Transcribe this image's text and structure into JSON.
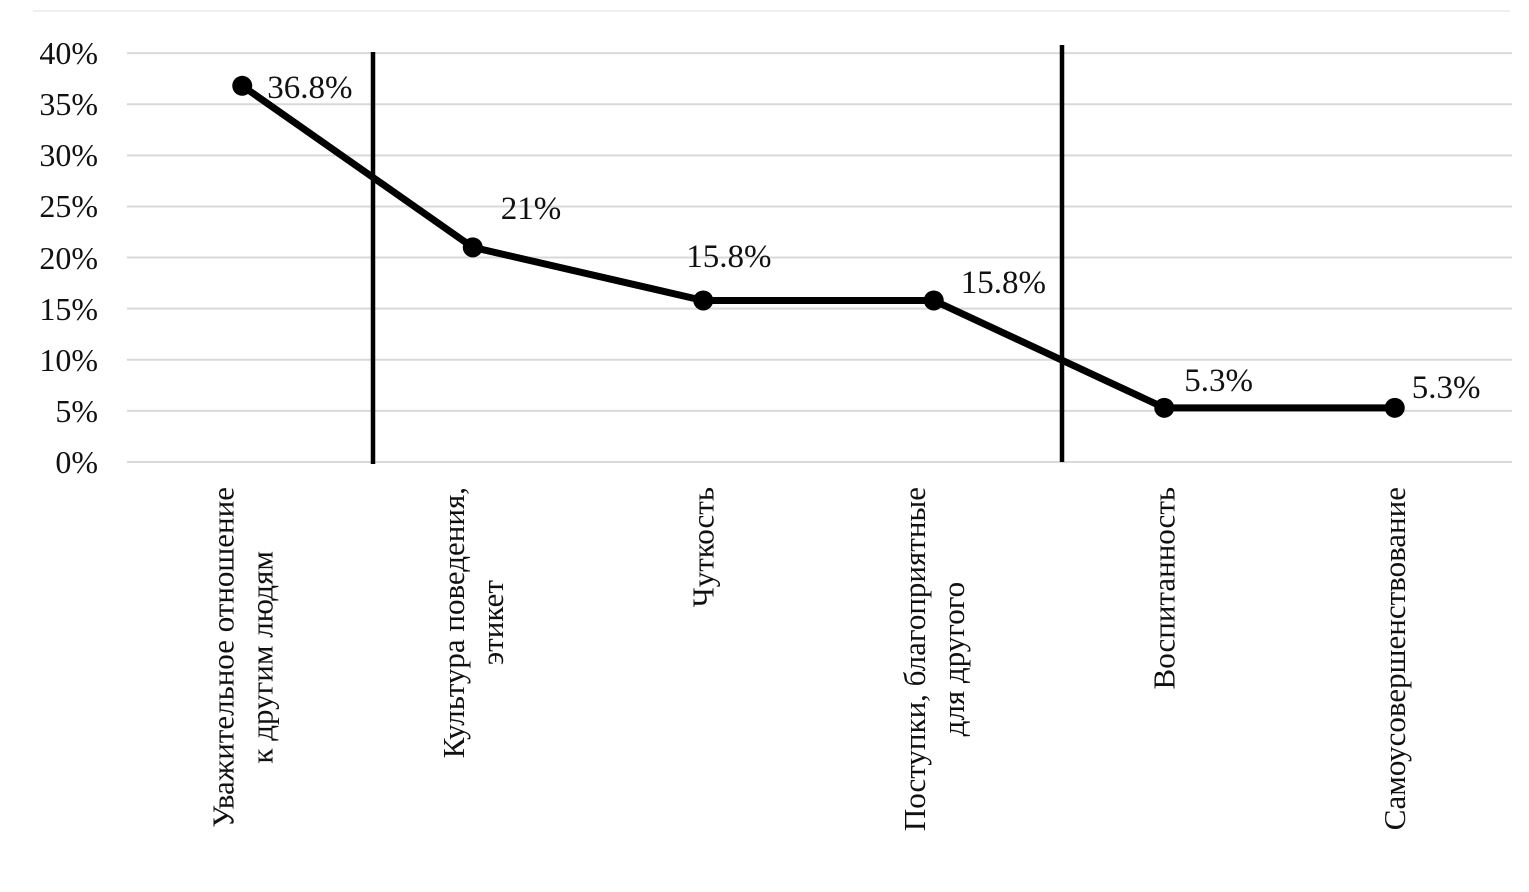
{
  "chart_data": {
    "type": "line",
    "title": "",
    "xlabel": "",
    "ylabel": "",
    "categories": [
      [
        "Уважительное отношение",
        "к другим людям"
      ],
      [
        "Культура поведения,",
        "этикет"
      ],
      [
        "Чуткость"
      ],
      [
        "Поступки, благоприятные",
        "для другого"
      ],
      [
        "Воспитанность"
      ],
      [
        "Самоусовершенствование"
      ]
    ],
    "values": [
      36.8,
      21,
      15.8,
      15.8,
      5.3,
      5.3
    ],
    "point_labels": [
      "36.8%",
      "21%",
      "15.8%",
      "15.8%",
      "5.3%",
      "5.3%"
    ],
    "y_ticks": [
      "40%",
      "35%",
      "30%",
      "25%",
      "20%",
      "15%",
      "10%",
      "5%",
      "0%"
    ],
    "ylim": [
      0,
      40
    ],
    "grid": "horizontal",
    "legend": "none",
    "dividers_after_category": [
      1,
      4
    ],
    "colors": {
      "series": "#000000",
      "marker": "#000000",
      "divider": "#000000",
      "gridline": "#d9d9d9",
      "text": "#111111",
      "background": "#ffffff"
    }
  }
}
